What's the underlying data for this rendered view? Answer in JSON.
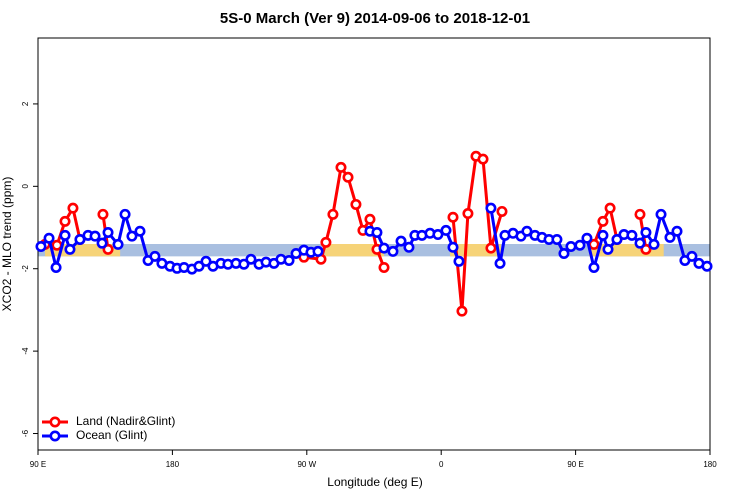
{
  "chart_data": {
    "type": "line",
    "title": "5S-0 March (Ver 9)   2014-09-06 to 2018-12-01",
    "x_label": "Longitude (deg E)",
    "y_label": "XCO2 - MLO trend (ppm)",
    "xlim": [
      90,
      540
    ],
    "ylim": [
      -6.4,
      3.6
    ],
    "xticks": [
      {
        "value": 90,
        "label": "90 E"
      },
      180,
      {
        "value": 270,
        "label": "90 W"
      },
      {
        "value": 360,
        "label": "0"
      },
      {
        "value": 450,
        "label": "90 E"
      },
      {
        "value": 540,
        "label": "180"
      }
    ],
    "yticks": [
      -6,
      -4,
      -2,
      0,
      2
    ],
    "band": {
      "ylim": [
        -1.7,
        -1.4
      ],
      "color": "#a9bfe0",
      "land_color": "#f6d378",
      "land_spans": [
        [
          94.7,
          145
        ],
        [
          282,
          321.7
        ],
        [
          366,
          400
        ],
        [
          459,
          509
        ]
      ]
    },
    "legend": "bottom-left",
    "series": [
      {
        "name": "Land (Nadir&Glint)",
        "color": "#ff0000",
        "x": [
          94.7,
          102.7,
          108.1,
          113.4,
          118.1,
          null,
          133.5,
          136.9,
          null,
          268.1,
          279.5,
          282.8,
          287.5,
          292.9,
          297.6,
          302.9,
          307.6,
          312.3,
          317.0,
          321.7,
          null,
          367.9,
          373.9,
          377.9,
          383.3,
          388.0,
          393.3,
          400.7,
          null,
          462.3,
          468.3,
          473.1,
          477.7,
          null,
          493.1,
          497.1
        ],
        "values": [
          -1.41,
          -1.43,
          -0.85,
          -0.53,
          -1.29,
          null,
          -0.68,
          -1.53,
          null,
          -1.72,
          -1.77,
          -1.36,
          -0.68,
          0.46,
          0.22,
          -0.44,
          -1.07,
          -0.8,
          -1.53,
          -1.97,
          null,
          -0.75,
          -3.03,
          -0.66,
          0.73,
          0.66,
          -1.5,
          -0.61,
          null,
          -1.41,
          -0.85,
          -0.53,
          -1.29,
          null,
          -0.68,
          -1.53
        ]
      },
      {
        "name": "Ocean (Glint)",
        "color": "#0000ff",
        "x": [
          92.0,
          97.4,
          102.1,
          108.1,
          111.4,
          118.1,
          123.5,
          128.2,
          132.9,
          136.9,
          143.6,
          148.3,
          152.9,
          158.3,
          163.7,
          168.3,
          173.0,
          178.4,
          183.1,
          187.8,
          193.1,
          197.8,
          202.5,
          207.2,
          212.5,
          217.2,
          222.6,
          227.9,
          232.6,
          238.0,
          242.7,
          248.0,
          252.7,
          258.1,
          262.8,
          268.1,
          272.8,
          277.5,
          null,
          312.3,
          317.0,
          321.7,
          327.7,
          333.1,
          338.4,
          342.4,
          347.1,
          352.5,
          357.8,
          363.2,
          367.9,
          371.9,
          null,
          393.3,
          399.4,
          402.7,
          408.1,
          413.4,
          417.4,
          422.8,
          427.5,
          432.2,
          437.5,
          442.2,
          446.9,
          452.9,
          457.6,
          462.3,
          468.3,
          471.7,
          477.7,
          482.4,
          487.7,
          493.1,
          497.1,
          502.5,
          507.2,
          513.2,
          517.9,
          523.2,
          527.9,
          532.6,
          538.0
        ],
        "values": [
          -1.46,
          -1.26,
          -1.97,
          -1.19,
          -1.53,
          -1.29,
          -1.19,
          -1.21,
          -1.38,
          -1.12,
          -1.41,
          -0.68,
          -1.21,
          -1.09,
          -1.8,
          -1.7,
          -1.87,
          -1.94,
          -1.99,
          -1.97,
          -2.01,
          -1.94,
          -1.82,
          -1.94,
          -1.87,
          -1.89,
          -1.87,
          -1.89,
          -1.77,
          -1.89,
          -1.84,
          -1.87,
          -1.77,
          -1.8,
          -1.63,
          -1.55,
          -1.6,
          -1.58,
          null,
          -1.09,
          -1.12,
          -1.5,
          -1.58,
          -1.33,
          -1.48,
          -1.19,
          -1.19,
          -1.14,
          -1.17,
          -1.07,
          -1.48,
          -1.82,
          null,
          -0.53,
          -1.87,
          -1.19,
          -1.14,
          -1.21,
          -1.09,
          -1.19,
          -1.24,
          -1.29,
          -1.29,
          -1.63,
          -1.46,
          -1.43,
          -1.26,
          -1.97,
          -1.19,
          -1.53,
          -1.29,
          -1.17,
          -1.19,
          -1.38,
          -1.12,
          -1.41,
          -0.68,
          -1.24,
          -1.09,
          -1.8,
          -1.7,
          -1.87,
          -1.94
        ]
      }
    ]
  }
}
